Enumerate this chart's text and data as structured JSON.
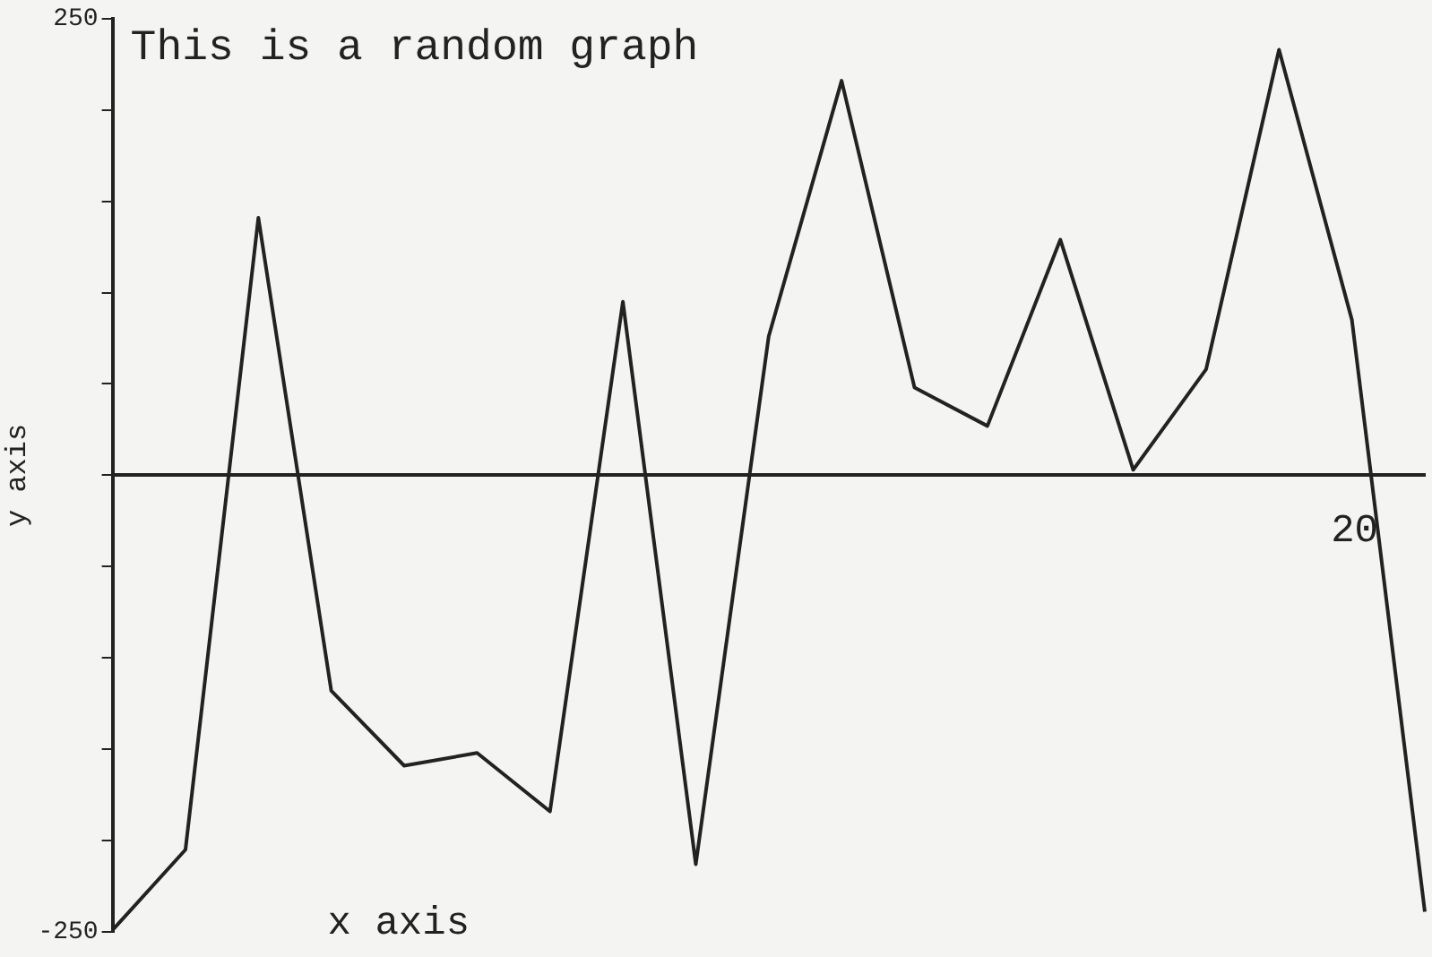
{
  "chart_data": {
    "type": "line",
    "title": "This is a random graph",
    "xlabel": "x axis",
    "ylabel": "y axis",
    "categories": [
      null,
      null,
      null,
      null,
      null,
      null,
      null,
      null,
      null,
      null,
      null,
      null,
      null,
      null,
      null,
      null,
      null,
      null,
      null
    ],
    "series": [
      {
        "color": "#222222",
        "values": [
          -249,
          -205,
          141,
          -118,
          -159,
          -152,
          -184,
          95,
          -213,
          76,
          216,
          48,
          27,
          129,
          3,
          58,
          233,
          85,
          -239
        ]
      }
    ],
    "annotations": [
      "20"
    ],
    "ylim": [
      -250,
      250
    ],
    "yticks": [
      {
        "value": -250,
        "label": "-250"
      },
      {
        "value": -200,
        "label": null
      },
      {
        "value": -150,
        "label": null
      },
      {
        "value": -100,
        "label": null
      },
      {
        "value": -50,
        "label": null
      },
      {
        "value": 0,
        "label": null
      },
      {
        "value": 50,
        "label": null
      },
      {
        "value": 100,
        "label": null
      },
      {
        "value": 150,
        "label": null
      },
      {
        "value": 200,
        "label": null
      },
      {
        "value": 250,
        "label": "250"
      }
    ],
    "legend": false,
    "marker": "none",
    "line_style": "solid"
  }
}
